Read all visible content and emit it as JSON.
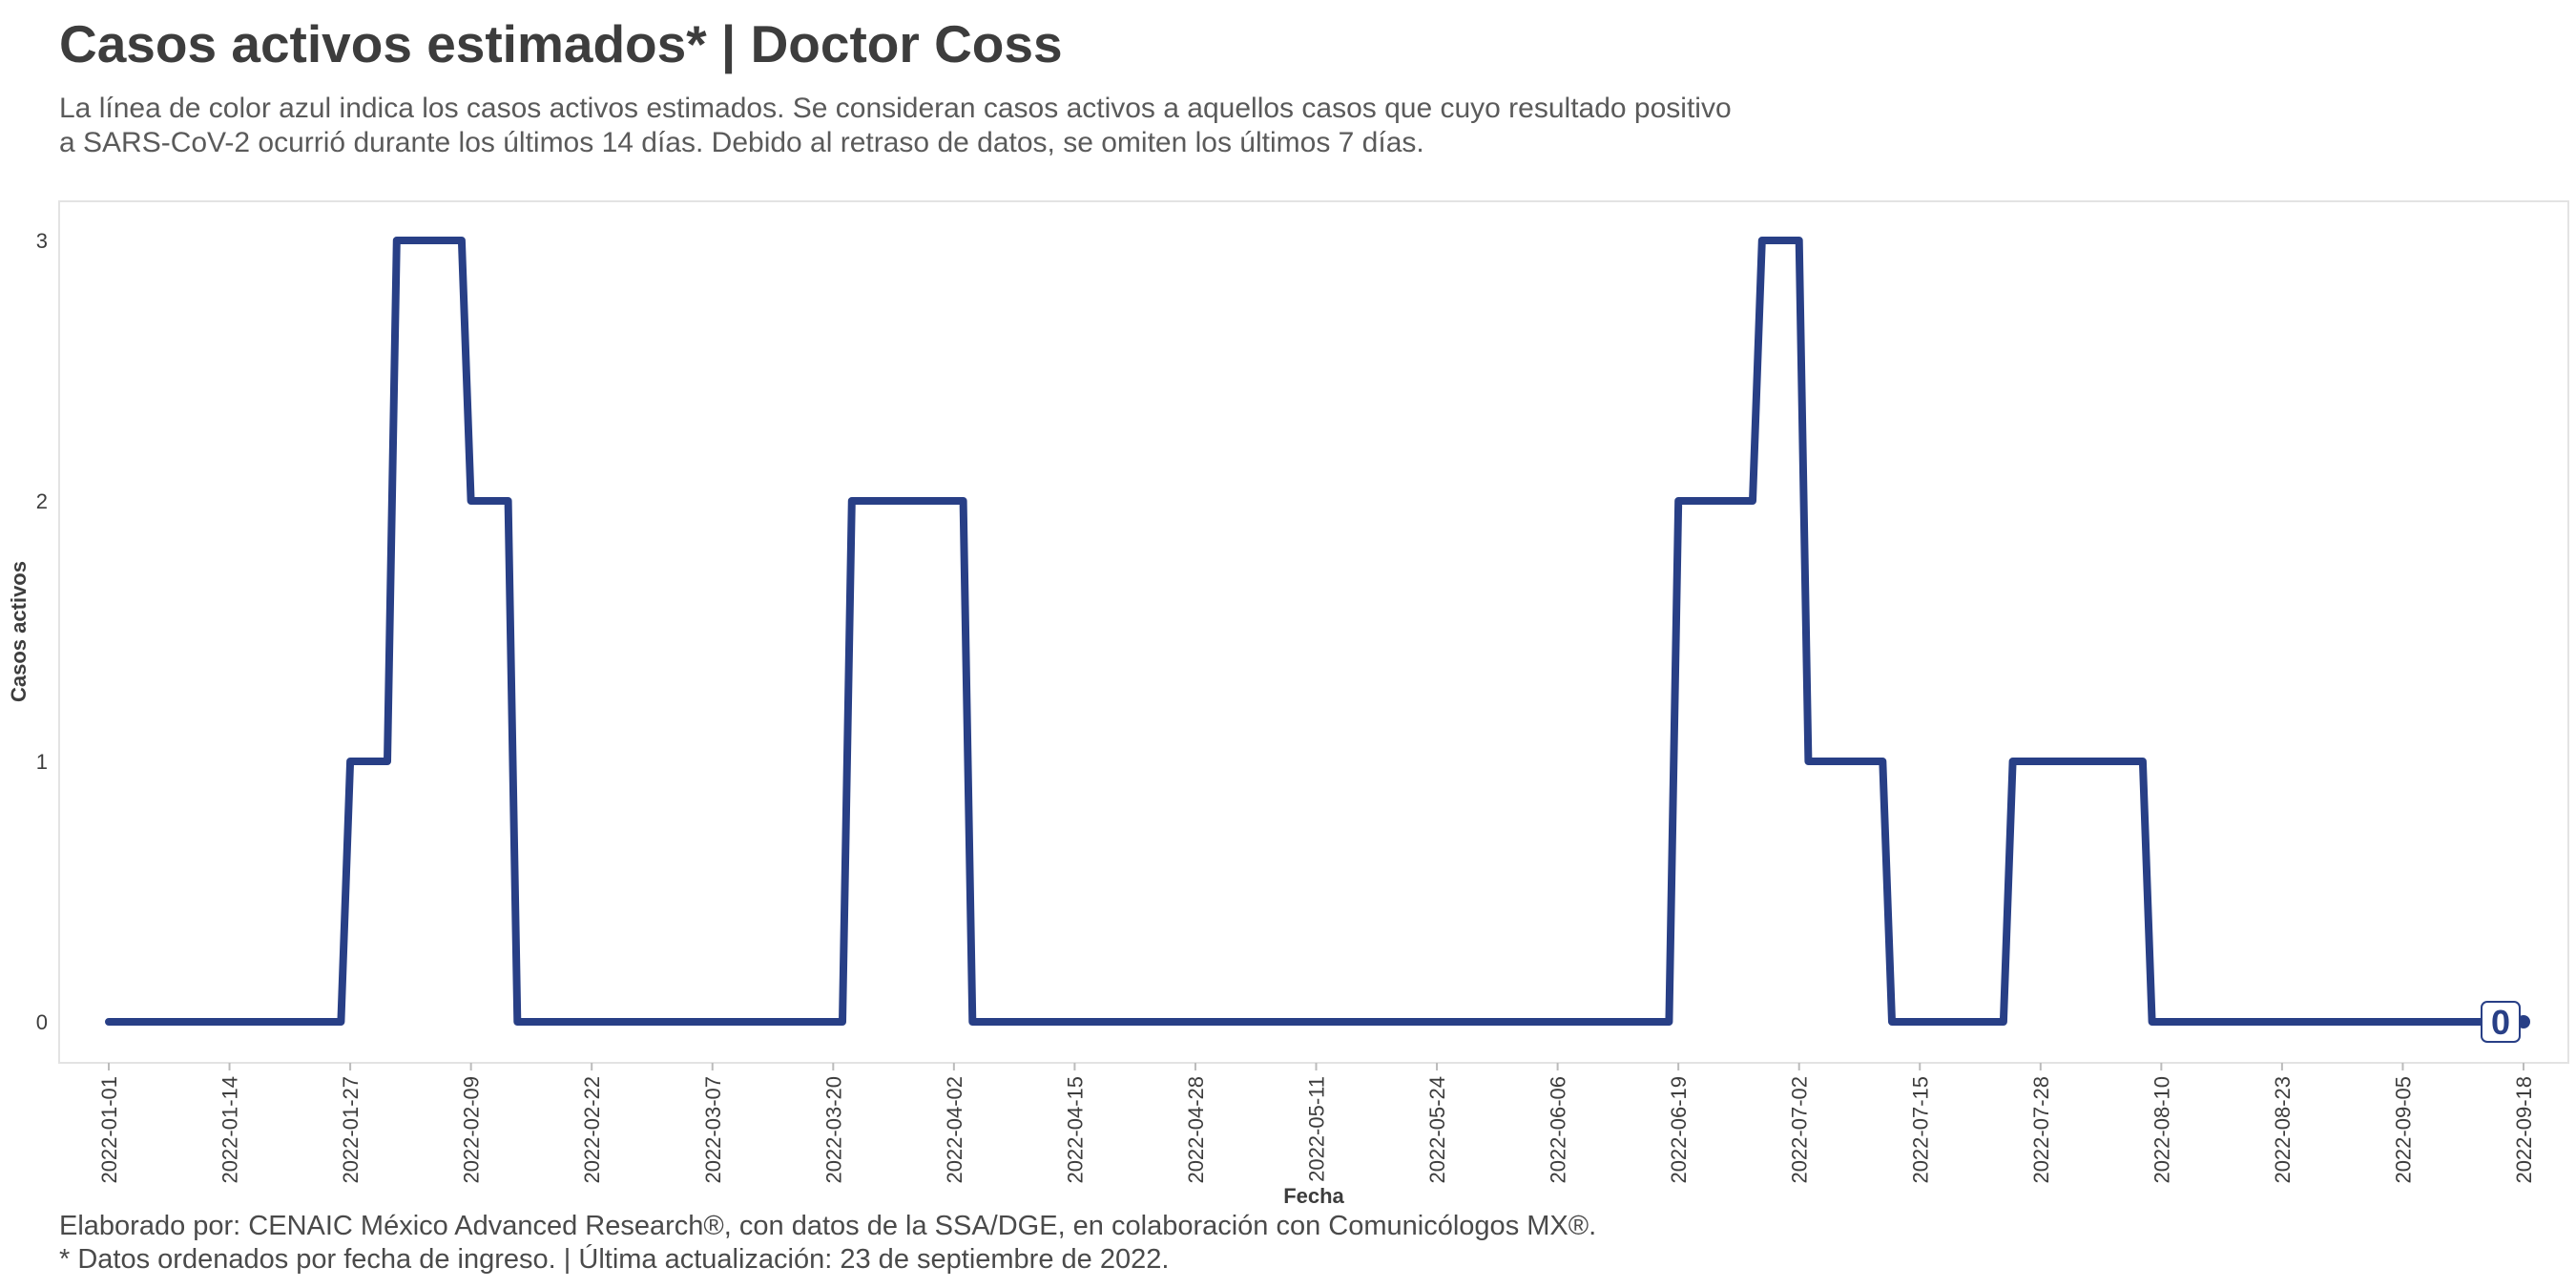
{
  "header": {
    "title": "Casos activos estimados* | Doctor Coss",
    "subtitle_line1": "La línea de color azul indica los casos activos estimados. Se consideran casos activos a aquellos casos que cuyo resultado positivo",
    "subtitle_line2": "a SARS-CoV-2 ocurrió durante los últimos 14 días. Debido al retraso de datos, se omiten los últimos 7 días."
  },
  "caption": {
    "line1": "Elaborado por: CENAIC México Advanced Research®, con datos de la SSA/DGE, en colaboración con Comunicólogos MX®.",
    "line2": "* Datos ordenados por fecha de ingreso. | Última actualización: 23 de septiembre de 2022."
  },
  "colors": {
    "line": "#283f86",
    "text": "#3d3d3d",
    "panel_border": "#e3e3e3"
  },
  "chart_data": {
    "type": "line",
    "xlabel": "Fecha",
    "ylabel": "Casos activos",
    "xlim": [
      "2022-01-01",
      "2022-09-18"
    ],
    "ylim": [
      0,
      3
    ],
    "y_ticks": [
      0,
      1,
      2,
      3
    ],
    "x_ticks": [
      "2022-01-01",
      "2022-01-14",
      "2022-01-27",
      "2022-02-09",
      "2022-02-22",
      "2022-03-07",
      "2022-03-20",
      "2022-04-02",
      "2022-04-15",
      "2022-04-28",
      "2022-05-11",
      "2022-05-24",
      "2022-06-06",
      "2022-06-19",
      "2022-07-02",
      "2022-07-15",
      "2022-07-28",
      "2022-08-10",
      "2022-08-23",
      "2022-09-05",
      "2022-09-18"
    ],
    "grid": false,
    "end_label": "0",
    "series": [
      {
        "x": [
          "2022-01-01",
          "2022-01-26",
          "2022-01-27",
          "2022-01-31",
          "2022-02-01",
          "2022-02-08",
          "2022-02-09",
          "2022-02-13",
          "2022-02-14",
          "2022-03-21",
          "2022-03-22",
          "2022-04-03",
          "2022-04-04",
          "2022-06-18",
          "2022-06-19",
          "2022-06-27",
          "2022-06-28",
          "2022-07-02",
          "2022-07-03",
          "2022-07-11",
          "2022-07-12",
          "2022-07-24",
          "2022-07-25",
          "2022-08-08",
          "2022-08-09",
          "2022-09-18"
        ],
        "y": [
          0,
          0,
          1,
          1,
          3,
          3,
          2,
          2,
          0,
          0,
          2,
          2,
          0,
          0,
          2,
          2,
          3,
          3,
          1,
          1,
          0,
          0,
          1,
          1,
          0,
          0
        ]
      }
    ]
  }
}
